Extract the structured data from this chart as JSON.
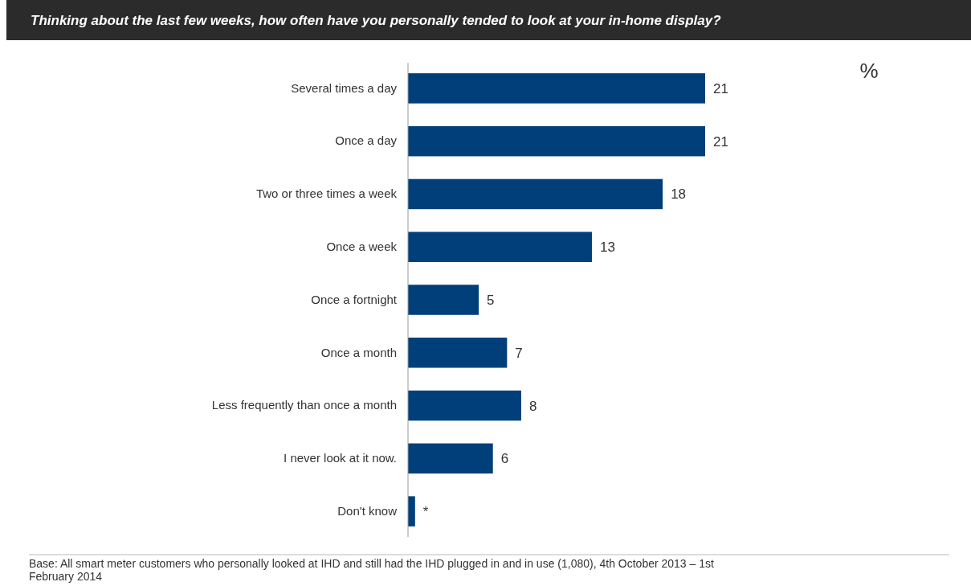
{
  "chart_data": {
    "type": "bar",
    "orientation": "horizontal",
    "title": "Thinking about the last few weeks, how often have you personally tended to look at your in-home display?",
    "categories": [
      "Several times a day",
      "Once a day",
      "Two or three times a week",
      "Once a week",
      "Once a fortnight",
      "Once a month",
      "Less frequently than once a month",
      "I never look at it now.",
      "Don't know"
    ],
    "values": [
      21,
      21,
      18,
      13,
      5,
      7,
      8,
      6,
      0.5
    ],
    "value_labels": [
      "21",
      "21",
      "18",
      "13",
      "5",
      "7",
      "8",
      "6",
      "*"
    ],
    "color": "#003f7a",
    "annotations": [
      "%",
      "Base: All smart meter customers who personally looked at IHD and still had the IHD plugged in and in use (1,080), 4th October 2013 – 1st February 2014"
    ]
  }
}
